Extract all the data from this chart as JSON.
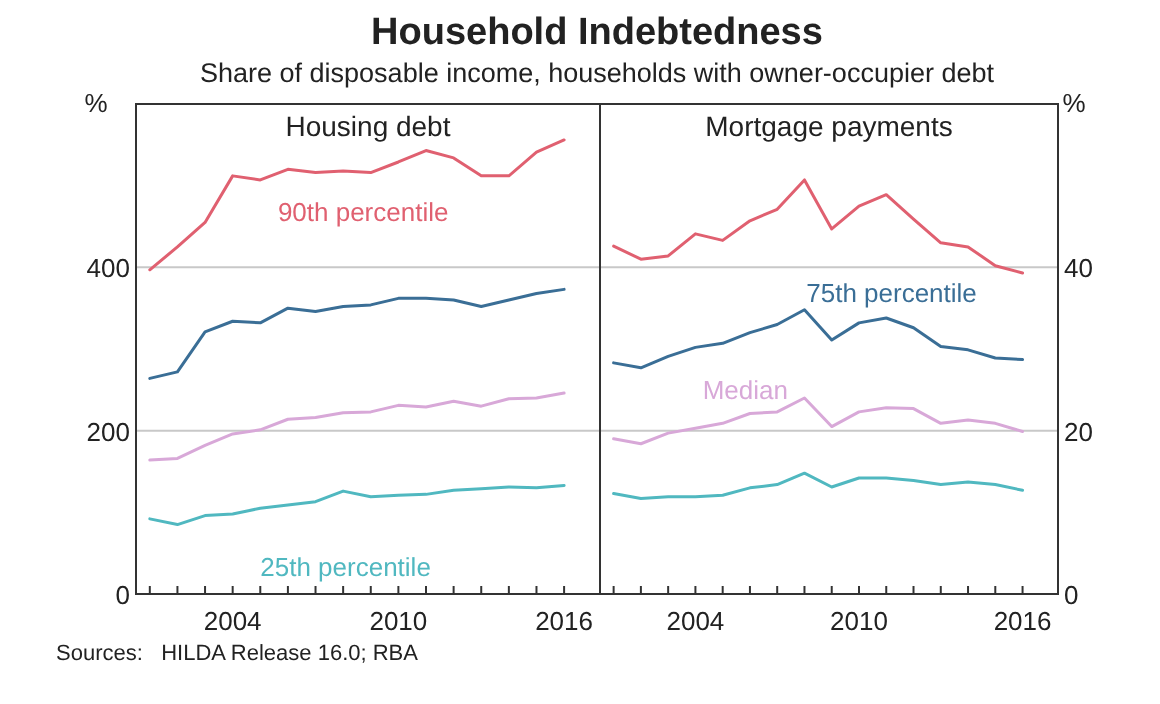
{
  "chart_data": [
    {
      "type": "line",
      "title": "Household Indebtedness",
      "subtitle": "Share of disposable income, households with owner-occupier debt",
      "annotations": [
        "Housing debt",
        "Sources:   HILDA Release 16.0; RBA"
      ],
      "ylabel": "%",
      "x": [
        2001,
        2002,
        2003,
        2004,
        2005,
        2006,
        2007,
        2008,
        2009,
        2010,
        2011,
        2012,
        2013,
        2014,
        2015,
        2016
      ],
      "xlim": [
        2000.5,
        2017.3
      ],
      "xticks": [
        {
          "value": 2001,
          "label": null
        },
        {
          "value": 2002,
          "label": null
        },
        {
          "value": 2003,
          "label": null
        },
        {
          "value": 2004,
          "label": "2004"
        },
        {
          "value": 2005,
          "label": null
        },
        {
          "value": 2006,
          "label": null
        },
        {
          "value": 2007,
          "label": null
        },
        {
          "value": 2008,
          "label": null
        },
        {
          "value": 2009,
          "label": null
        },
        {
          "value": 2010,
          "label": "2010"
        },
        {
          "value": 2011,
          "label": null
        },
        {
          "value": 2012,
          "label": null
        },
        {
          "value": 2013,
          "label": null
        },
        {
          "value": 2014,
          "label": null
        },
        {
          "value": 2015,
          "label": null
        },
        {
          "value": 2016,
          "label": "2016"
        }
      ],
      "ylim": [
        0,
        600
      ],
      "yticks": [
        0,
        200,
        400
      ],
      "grid": "y",
      "series": [
        {
          "name": "90th percentile",
          "color": "#e06070",
          "values": [
            397,
            425,
            455,
            512,
            507,
            520,
            516,
            518,
            516,
            529,
            543,
            534,
            512,
            512,
            541,
            556
          ]
        },
        {
          "color": "#3a6e96",
          "values": [
            264,
            272,
            321,
            334,
            332,
            350,
            346,
            352,
            354,
            362,
            362,
            360,
            352,
            360,
            368,
            373
          ]
        },
        {
          "color": "#d8a8d8",
          "values": [
            164,
            166,
            182,
            196,
            201,
            214,
            216,
            222,
            223,
            231,
            229,
            236,
            230,
            239,
            240,
            246
          ]
        },
        {
          "name": "25th percentile",
          "color": "#50b8c0",
          "values": [
            92,
            85,
            96,
            98,
            105,
            109,
            113,
            126,
            119,
            121,
            122,
            127,
            129,
            131,
            130,
            133
          ]
        }
      ]
    },
    {
      "type": "line",
      "title": "Mortgage payments",
      "y2label": "%",
      "x": [
        2001,
        2002,
        2003,
        2004,
        2005,
        2006,
        2007,
        2008,
        2009,
        2010,
        2011,
        2012,
        2013,
        2014,
        2015,
        2016
      ],
      "xlim": [
        2000.5,
        2017.3
      ],
      "xticks": [
        {
          "value": 2001,
          "label": null
        },
        {
          "value": 2002,
          "label": null
        },
        {
          "value": 2003,
          "label": null
        },
        {
          "value": 2004,
          "label": "2004"
        },
        {
          "value": 2005,
          "label": null
        },
        {
          "value": 2006,
          "label": null
        },
        {
          "value": 2007,
          "label": null
        },
        {
          "value": 2008,
          "label": null
        },
        {
          "value": 2009,
          "label": null
        },
        {
          "value": 2010,
          "label": "2010"
        },
        {
          "value": 2011,
          "label": null
        },
        {
          "value": 2012,
          "label": null
        },
        {
          "value": 2013,
          "label": null
        },
        {
          "value": 2014,
          "label": null
        },
        {
          "value": 2015,
          "label": null
        },
        {
          "value": 2016,
          "label": "2016"
        }
      ],
      "y2lim": [
        0,
        60
      ],
      "y2ticks": [
        0,
        20,
        40
      ],
      "grid": "y",
      "series": [
        {
          "color": "#e06070",
          "axis": "y2",
          "values": [
            42.6,
            41.0,
            41.4,
            44.1,
            43.3,
            45.7,
            47.1,
            50.7,
            44.7,
            47.5,
            48.9,
            45.9,
            43.0,
            42.5,
            40.2,
            39.3
          ]
        },
        {
          "name": "75th percentile",
          "color": "#3a6e96",
          "axis": "y2",
          "values": [
            28.3,
            27.7,
            29.1,
            30.2,
            30.7,
            32.0,
            33.0,
            34.8,
            31.1,
            33.2,
            33.8,
            32.6,
            30.3,
            29.9,
            28.9,
            28.7
          ]
        },
        {
          "name": "Median",
          "color": "#d8a8d8",
          "axis": "y2",
          "values": [
            19.0,
            18.4,
            19.7,
            20.3,
            20.9,
            22.1,
            22.3,
            24.0,
            20.5,
            22.3,
            22.8,
            22.7,
            20.9,
            21.3,
            20.9,
            19.9
          ]
        },
        {
          "color": "#50b8c0",
          "axis": "y2",
          "values": [
            12.3,
            11.7,
            11.9,
            11.9,
            12.1,
            13.0,
            13.4,
            14.8,
            13.1,
            14.2,
            14.2,
            13.9,
            13.4,
            13.7,
            13.4,
            12.7
          ]
        }
      ]
    }
  ]
}
